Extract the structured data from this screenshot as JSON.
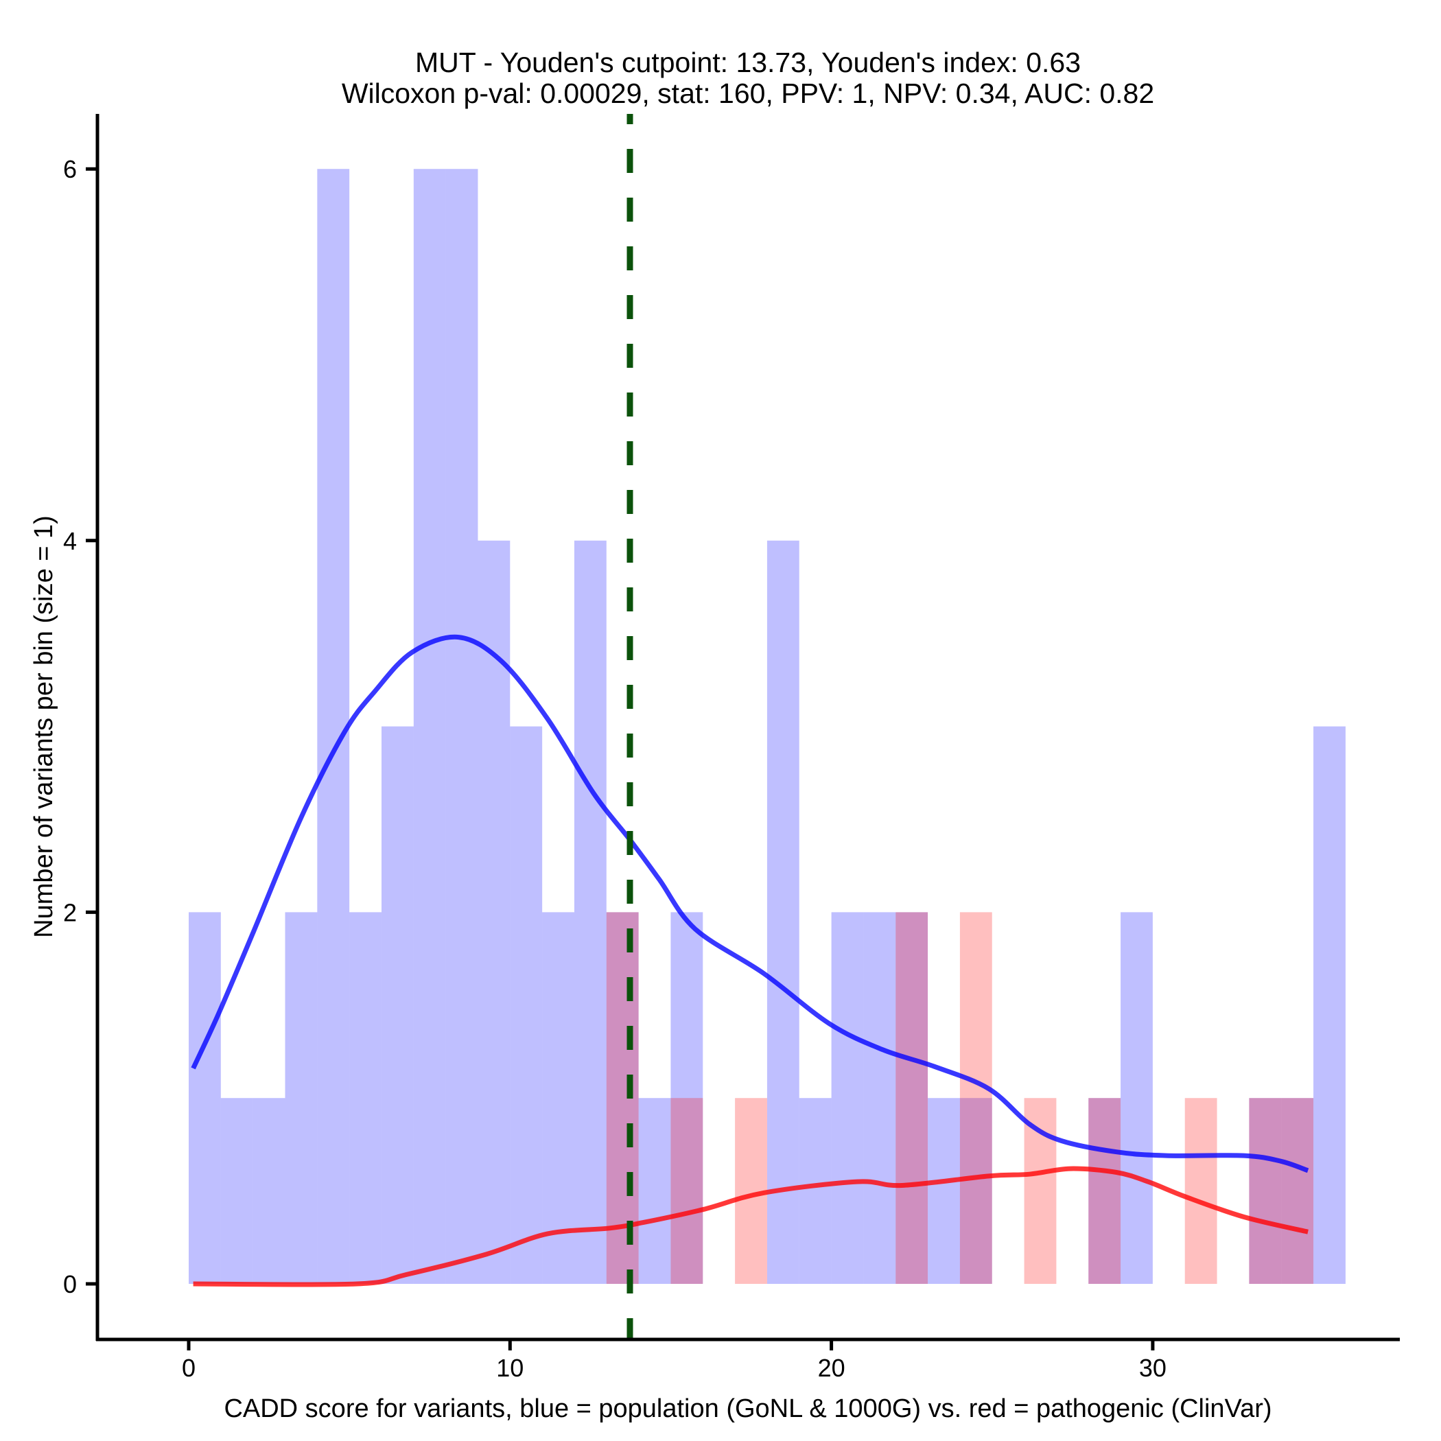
{
  "chart_data": {
    "type": "bar",
    "title": [
      "MUT - Youden's cutpoint: 13.73, Youden's index: 0.63",
      "Wilcoxon p-val: 0.00029, stat: 160, PPV: 1, NPV: 0.34, AUC: 0.82"
    ],
    "xlabel": "CADD score for variants, blue = population (GoNL & 1000G) vs. red = pathogenic (ClinVar)",
    "ylabel": "Number of variants per bin (size = 1)",
    "xlim": [
      -2.8,
      37.4
    ],
    "ylim": [
      -0.3,
      6.3
    ],
    "xticks": [
      0,
      10,
      20,
      30
    ],
    "xtick_labels": [
      "0",
      "10",
      "20",
      "30"
    ],
    "yticks": [
      0,
      2,
      4,
      6
    ],
    "ytick_labels": [
      "0",
      "2",
      "4",
      "6"
    ],
    "grid": false,
    "bin_width": 1,
    "colors": {
      "population_bar": "#0000ff",
      "pathogenic_bar": "#ff0000",
      "population_line": "#0000ff",
      "pathogenic_line": "#ff0000",
      "cutpoint_line": "#0b520b",
      "bar_alpha": 0.25,
      "line_alpha": 0.78
    },
    "histograms": [
      {
        "name": "population (GoNL & 1000G)",
        "color_key": "population_bar",
        "bin_starts": [
          0,
          1,
          2,
          3,
          4,
          5,
          6,
          7,
          8,
          9,
          10,
          11,
          12,
          13,
          14,
          15,
          16,
          17,
          18,
          19,
          20,
          21,
          22,
          23,
          24,
          25,
          26,
          27,
          28,
          29,
          30,
          31,
          32,
          33,
          34,
          35
        ],
        "counts": [
          2,
          1,
          1,
          2,
          6,
          2,
          3,
          6,
          6,
          4,
          3,
          2,
          4,
          2,
          1,
          2,
          0,
          0,
          4,
          1,
          2,
          2,
          2,
          1,
          1,
          0,
          0,
          0,
          1,
          2,
          0,
          0,
          0,
          1,
          1,
          3
        ]
      },
      {
        "name": "pathogenic (ClinVar)",
        "color_key": "pathogenic_bar",
        "bin_starts": [
          0,
          1,
          2,
          3,
          4,
          5,
          6,
          7,
          8,
          9,
          10,
          11,
          12,
          13,
          14,
          15,
          16,
          17,
          18,
          19,
          20,
          21,
          22,
          23,
          24,
          25,
          26,
          27,
          28,
          29,
          30,
          31,
          32,
          33,
          34,
          35
        ],
        "counts": [
          0,
          0,
          0,
          0,
          0,
          0,
          0,
          0,
          0,
          0,
          0,
          0,
          0,
          2,
          0,
          1,
          0,
          1,
          0,
          0,
          0,
          0,
          2,
          0,
          2,
          0,
          1,
          0,
          1,
          0,
          0,
          1,
          0,
          1,
          1,
          0
        ]
      }
    ],
    "series": [
      {
        "name": "population density (scaled)",
        "type": "line",
        "color_key": "population_line",
        "x": [
          0.14,
          0.92,
          1.98,
          3.5,
          4.85,
          5.8,
          6.96,
          8.4,
          9.74,
          11.17,
          12.6,
          13.73,
          14.63,
          15.76,
          17.9,
          19.94,
          21.6,
          23.2,
          24.9,
          26.16,
          27.16,
          28.87,
          30.43,
          32.84,
          33.99,
          34.83
        ],
        "y": [
          1.16,
          1.45,
          1.88,
          2.51,
          2.97,
          3.19,
          3.4,
          3.48,
          3.35,
          3.04,
          2.64,
          2.39,
          2.18,
          1.91,
          1.67,
          1.4,
          1.26,
          1.17,
          1.05,
          0.86,
          0.77,
          0.71,
          0.69,
          0.69,
          0.66,
          0.61
        ]
      },
      {
        "name": "pathogenic density (scaled)",
        "type": "line",
        "color_key": "pathogenic_line",
        "x": [
          0.14,
          5.23,
          6.77,
          9.27,
          11.17,
          13.1,
          14.14,
          16.0,
          17.9,
          20.8,
          22.2,
          24.9,
          26.16,
          27.44,
          28.87,
          29.85,
          31.0,
          32.84,
          34.83
        ],
        "y": [
          0,
          0,
          0.05,
          0.16,
          0.27,
          0.3,
          0.33,
          0.4,
          0.49,
          0.55,
          0.53,
          0.58,
          0.59,
          0.62,
          0.6,
          0.55,
          0.47,
          0.36,
          0.28
        ]
      }
    ],
    "annotations": [
      {
        "type": "vline",
        "name": "Youden's cutpoint",
        "x": 13.73,
        "style": "dashed",
        "color_key": "cutpoint_line"
      }
    ]
  }
}
